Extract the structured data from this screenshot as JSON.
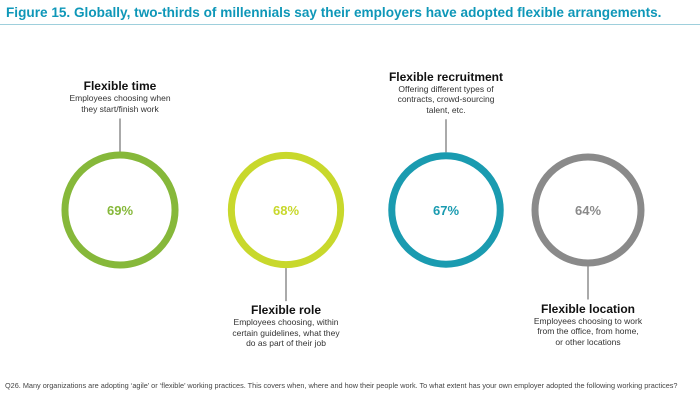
{
  "title": "Figure 15. Globally, two-thirds of millennials say their employers have adopted flexible arrangements.",
  "footnote": "Q26. Many organizations are adopting ‘agile’ or ‘flexible’ working practices. This covers when, where and how their people work. To what extent has your own employer adopted the following working practices?",
  "chart_data": {
    "type": "bubble",
    "title": "Figure 15. Globally, two-thirds of millennials say their employers have adopted flexible arrangements.",
    "unit": "%",
    "items": [
      {
        "name": "Flexible time",
        "value": 69,
        "label": "69%",
        "description": "Employees choosing when\nthey start/finish work",
        "label_position": "above",
        "color": "#86b83a"
      },
      {
        "name": "Flexible role",
        "value": 68,
        "label": "68%",
        "description": "Employees choosing, within\ncertain guidelines, what they\ndo as part of their job",
        "label_position": "below",
        "color": "#c8d82c"
      },
      {
        "name": "Flexible recruitment",
        "value": 67,
        "label": "67%",
        "description": "Offering different types of\ncontracts, crowd-sourcing\ntalent, etc.",
        "label_position": "above",
        "color": "#1a9bb0"
      },
      {
        "name": "Flexible location",
        "value": 64,
        "label": "64%",
        "description": "Employees choosing to work\nfrom the office, from home,\nor other locations",
        "label_position": "below",
        "color": "#8a8a8a"
      }
    ]
  }
}
